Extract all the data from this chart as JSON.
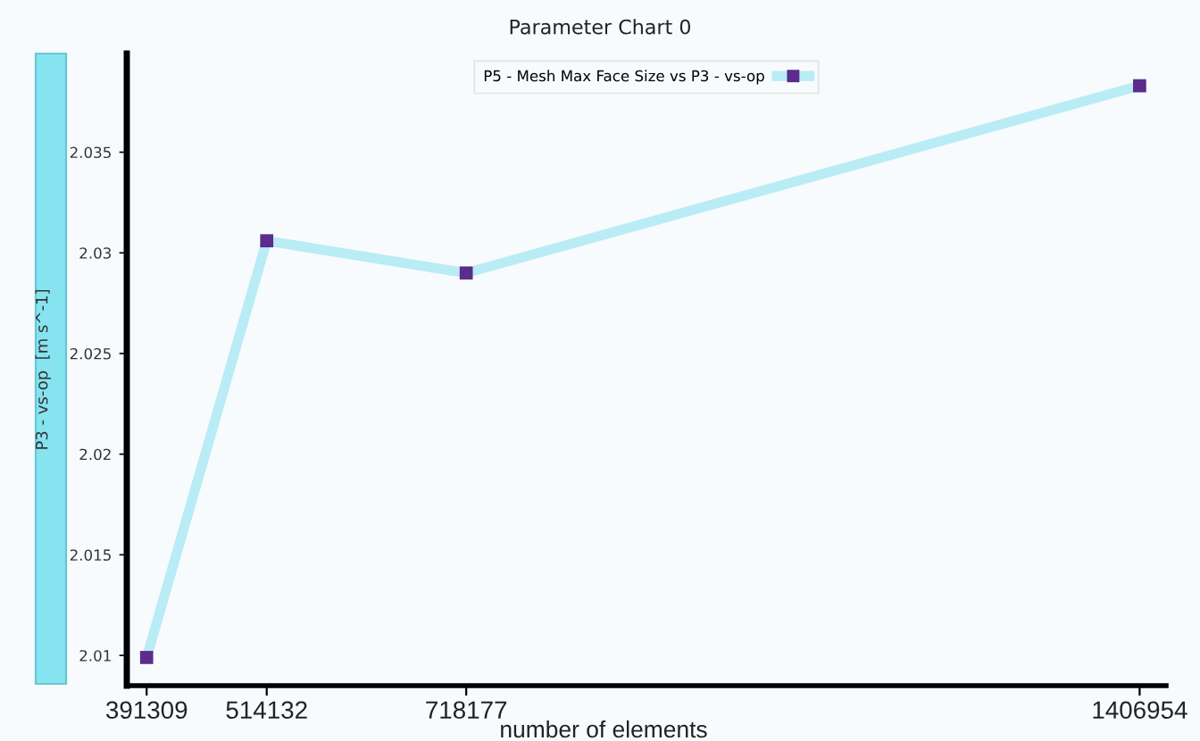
{
  "chart_data": {
    "type": "line",
    "title": "Parameter Chart 0",
    "xlabel": "number of elements",
    "ylabel": "P3 - vs-op  [m s^-1]",
    "x": [
      391309,
      514132,
      718177,
      1406954
    ],
    "series": [
      {
        "name": "P5 - Mesh Max Face Size vs P3 - vs-op",
        "color": "#b9ecf4",
        "colors": [
          "#5a2d8c",
          "#5a2d8c",
          "#5a2d8c",
          "#5a2d8c"
        ],
        "values": [
          2.0099,
          2.0306,
          2.029,
          2.0383
        ]
      }
    ],
    "xlim": [
      371000,
      1434000
    ],
    "xticks": [
      391309,
      514132,
      718177,
      1406954
    ],
    "ylim": [
      2.0085,
      2.0399
    ],
    "yticks": [
      2.01,
      2.015,
      2.02,
      2.025,
      2.03,
      2.035
    ],
    "grid": false,
    "legend": "top",
    "marker": "square",
    "line_style": "solid"
  }
}
